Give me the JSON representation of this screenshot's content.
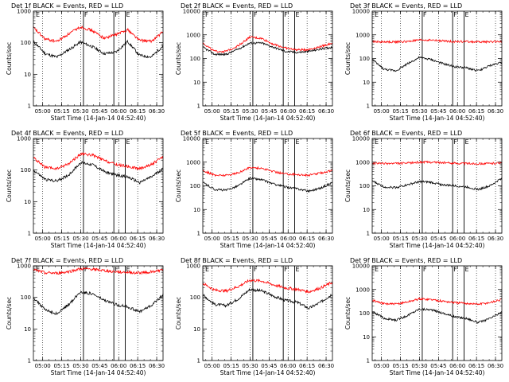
{
  "chart_data": [
    {
      "type": "line",
      "title": "Det 1f BLACK = Events, RED = LLD",
      "xlabel": "Start Time (14-Jan-14 04:52:40)",
      "ylabel": "Counts/sec",
      "x_ticks": [
        "05:00",
        "05:15",
        "05:30",
        "05:45",
        "06:00",
        "06:15",
        "06:30"
      ],
      "y_ticks": [
        "1",
        "10",
        "100",
        "1000"
      ],
      "ylim": [
        1,
        1000
      ],
      "series": [
        {
          "color": "#000000",
          "values": [
            110,
            45,
            35,
            60,
            105,
            75,
            45,
            50,
            110,
            40,
            35,
            80
          ]
        },
        {
          "color": "#ff0000",
          "values": [
            300,
            130,
            110,
            190,
            320,
            240,
            140,
            180,
            260,
            120,
            110,
            220
          ]
        }
      ],
      "flags": [
        "E",
        "F",
        "F",
        "E"
      ]
    },
    {
      "type": "line",
      "title": "Det 2f BLACK = Events, RED = LLD",
      "xlabel": "Start Time (14-Jan-14 04:52:40)",
      "ylabel": "Counts/sec",
      "x_ticks": [
        "05:00",
        "05:15",
        "05:30",
        "05:45",
        "06:00",
        "06:15",
        "06:30"
      ],
      "y_ticks": [
        "1",
        "10",
        "100",
        "1000",
        "10000"
      ],
      "ylim": [
        1,
        10000
      ],
      "series": [
        {
          "color": "#000000",
          "values": [
            300,
            150,
            150,
            250,
            450,
            450,
            300,
            200,
            180,
            200,
            250,
            300
          ]
        },
        {
          "color": "#ff0000",
          "values": [
            450,
            200,
            200,
            350,
            800,
            700,
            400,
            280,
            230,
            240,
            320,
            450
          ]
        }
      ],
      "flags": [
        "F",
        "F",
        "F",
        "E"
      ]
    },
    {
      "type": "line",
      "title": "Det 3f BLACK = Events, RED = LLD",
      "xlabel": "Start Time (14-Jan-14 04:52:40)",
      "ylabel": "Counts/sec",
      "x_ticks": [
        "05:00",
        "05:15",
        "05:30",
        "05:45",
        "06:00",
        "06:15",
        "06:30"
      ],
      "y_ticks": [
        "1",
        "10",
        "100",
        "1000",
        "10000"
      ],
      "ylim": [
        1,
        10000
      ],
      "series": [
        {
          "color": "#000000",
          "values": [
            90,
            35,
            30,
            60,
            110,
            90,
            60,
            45,
            40,
            30,
            50,
            70
          ]
        },
        {
          "color": "#ff0000",
          "values": [
            520,
            500,
            500,
            520,
            600,
            600,
            550,
            520,
            520,
            500,
            510,
            530
          ]
        }
      ],
      "flags": [
        "E",
        "F",
        "F",
        "E"
      ]
    },
    {
      "type": "line",
      "title": "Det 4f BLACK = Events, RED = LLD",
      "xlabel": "Start Time (14-Jan-14 04:52:40)",
      "ylabel": "Counts/sec",
      "x_ticks": [
        "05:00",
        "05:15",
        "05:30",
        "05:45",
        "06:00",
        "06:15",
        "06:30"
      ],
      "y_ticks": [
        "1",
        "10",
        "100",
        "1000"
      ],
      "ylim": [
        1,
        1000
      ],
      "series": [
        {
          "color": "#000000",
          "values": [
            100,
            50,
            45,
            70,
            170,
            150,
            90,
            70,
            60,
            40,
            60,
            110
          ]
        },
        {
          "color": "#ff0000",
          "values": [
            250,
            120,
            110,
            160,
            320,
            300,
            200,
            150,
            130,
            110,
            150,
            260
          ]
        }
      ],
      "flags": [
        "E",
        "F",
        "F",
        "E"
      ]
    },
    {
      "type": "line",
      "title": "Det 5f BLACK = Events, RED = LLD",
      "xlabel": "Start Time (14-Jan-14 04:52:40)",
      "ylabel": "Counts/sec",
      "x_ticks": [
        "05:00",
        "05:15",
        "05:30",
        "05:45",
        "06:00",
        "06:15",
        "06:30"
      ],
      "y_ticks": [
        "1",
        "10",
        "100",
        "1000",
        "10000"
      ],
      "ylim": [
        1,
        10000
      ],
      "series": [
        {
          "color": "#000000",
          "values": [
            140,
            70,
            65,
            100,
            210,
            180,
            120,
            90,
            75,
            60,
            80,
            140
          ]
        },
        {
          "color": "#ff0000",
          "values": [
            450,
            280,
            280,
            350,
            600,
            550,
            400,
            320,
            300,
            280,
            350,
            450
          ]
        }
      ],
      "flags": [
        "E",
        "F",
        "F",
        "E"
      ]
    },
    {
      "type": "line",
      "title": "Det 6f BLACK = Events, RED = LLD",
      "xlabel": "Start Time (14-Jan-14 04:52:40)",
      "ylabel": "Counts/sec",
      "x_ticks": [
        "05:00",
        "05:15",
        "05:30",
        "05:45",
        "06:00",
        "06:15",
        "06:30"
      ],
      "y_ticks": [
        "1",
        "10",
        "100",
        "1000",
        "10000"
      ],
      "ylim": [
        1,
        10000
      ],
      "series": [
        {
          "color": "#000000",
          "values": [
            160,
            90,
            85,
            110,
            150,
            140,
            110,
            100,
            90,
            70,
            100,
            210
          ]
        },
        {
          "color": "#ff0000",
          "values": [
            900,
            880,
            880,
            900,
            1000,
            1000,
            950,
            900,
            880,
            860,
            880,
            950
          ]
        }
      ],
      "flags": [
        "E",
        "F",
        "F",
        "E"
      ]
    },
    {
      "type": "line",
      "title": "Det 7f BLACK = Events, RED = LLD",
      "xlabel": "Start Time (14-Jan-14 04:52:40)",
      "ylabel": "Counts/sec",
      "x_ticks": [
        "05:00",
        "05:15",
        "05:30",
        "05:45",
        "06:00",
        "06:15",
        "06:30"
      ],
      "y_ticks": [
        "1",
        "10",
        "100",
        "1000"
      ],
      "ylim": [
        1,
        1000
      ],
      "series": [
        {
          "color": "#000000",
          "values": [
            100,
            40,
            30,
            60,
            150,
            130,
            80,
            60,
            50,
            35,
            55,
            120
          ]
        },
        {
          "color": "#ff0000",
          "values": [
            750,
            600,
            580,
            650,
            800,
            780,
            700,
            650,
            620,
            600,
            650,
            750
          ]
        }
      ],
      "flags": [
        "E",
        "F",
        "F",
        "E"
      ]
    },
    {
      "type": "line",
      "title": "Det 8f BLACK = Events, RED = LLD",
      "xlabel": "Start Time (14-Jan-14 04:52:40)",
      "ylabel": "Counts/sec",
      "x_ticks": [
        "05:00",
        "05:15",
        "05:30",
        "05:45",
        "06:00",
        "06:15",
        "06:30"
      ],
      "y_ticks": [
        "1",
        "10",
        "100",
        "1000"
      ],
      "ylim": [
        1,
        1000
      ],
      "series": [
        {
          "color": "#000000",
          "values": [
            120,
            60,
            55,
            90,
            180,
            160,
            110,
            80,
            70,
            45,
            70,
            130
          ]
        },
        {
          "color": "#ff0000",
          "values": [
            280,
            170,
            160,
            220,
            350,
            330,
            250,
            200,
            180,
            150,
            200,
            300
          ]
        }
      ],
      "flags": [
        "E",
        "F",
        "F",
        "E"
      ]
    },
    {
      "type": "line",
      "title": "Det 9f BLACK = Events, RED = LLD",
      "xlabel": "Start Time (14-Jan-14 04:52:40)",
      "ylabel": "Counts/sec",
      "x_ticks": [
        "05:00",
        "05:15",
        "05:30",
        "05:45",
        "06:00",
        "06:15",
        "06:30"
      ],
      "y_ticks": [
        "1",
        "10",
        "100",
        "1000",
        "10000"
      ],
      "ylim": [
        1,
        10000
      ],
      "series": [
        {
          "color": "#000000",
          "values": [
            120,
            60,
            50,
            80,
            150,
            140,
            100,
            70,
            60,
            40,
            60,
            110
          ]
        },
        {
          "color": "#ff0000",
          "values": [
            350,
            250,
            240,
            300,
            400,
            380,
            320,
            280,
            260,
            240,
            280,
            380
          ]
        }
      ],
      "flags": [
        "E",
        "F",
        "F",
        "E"
      ]
    }
  ]
}
